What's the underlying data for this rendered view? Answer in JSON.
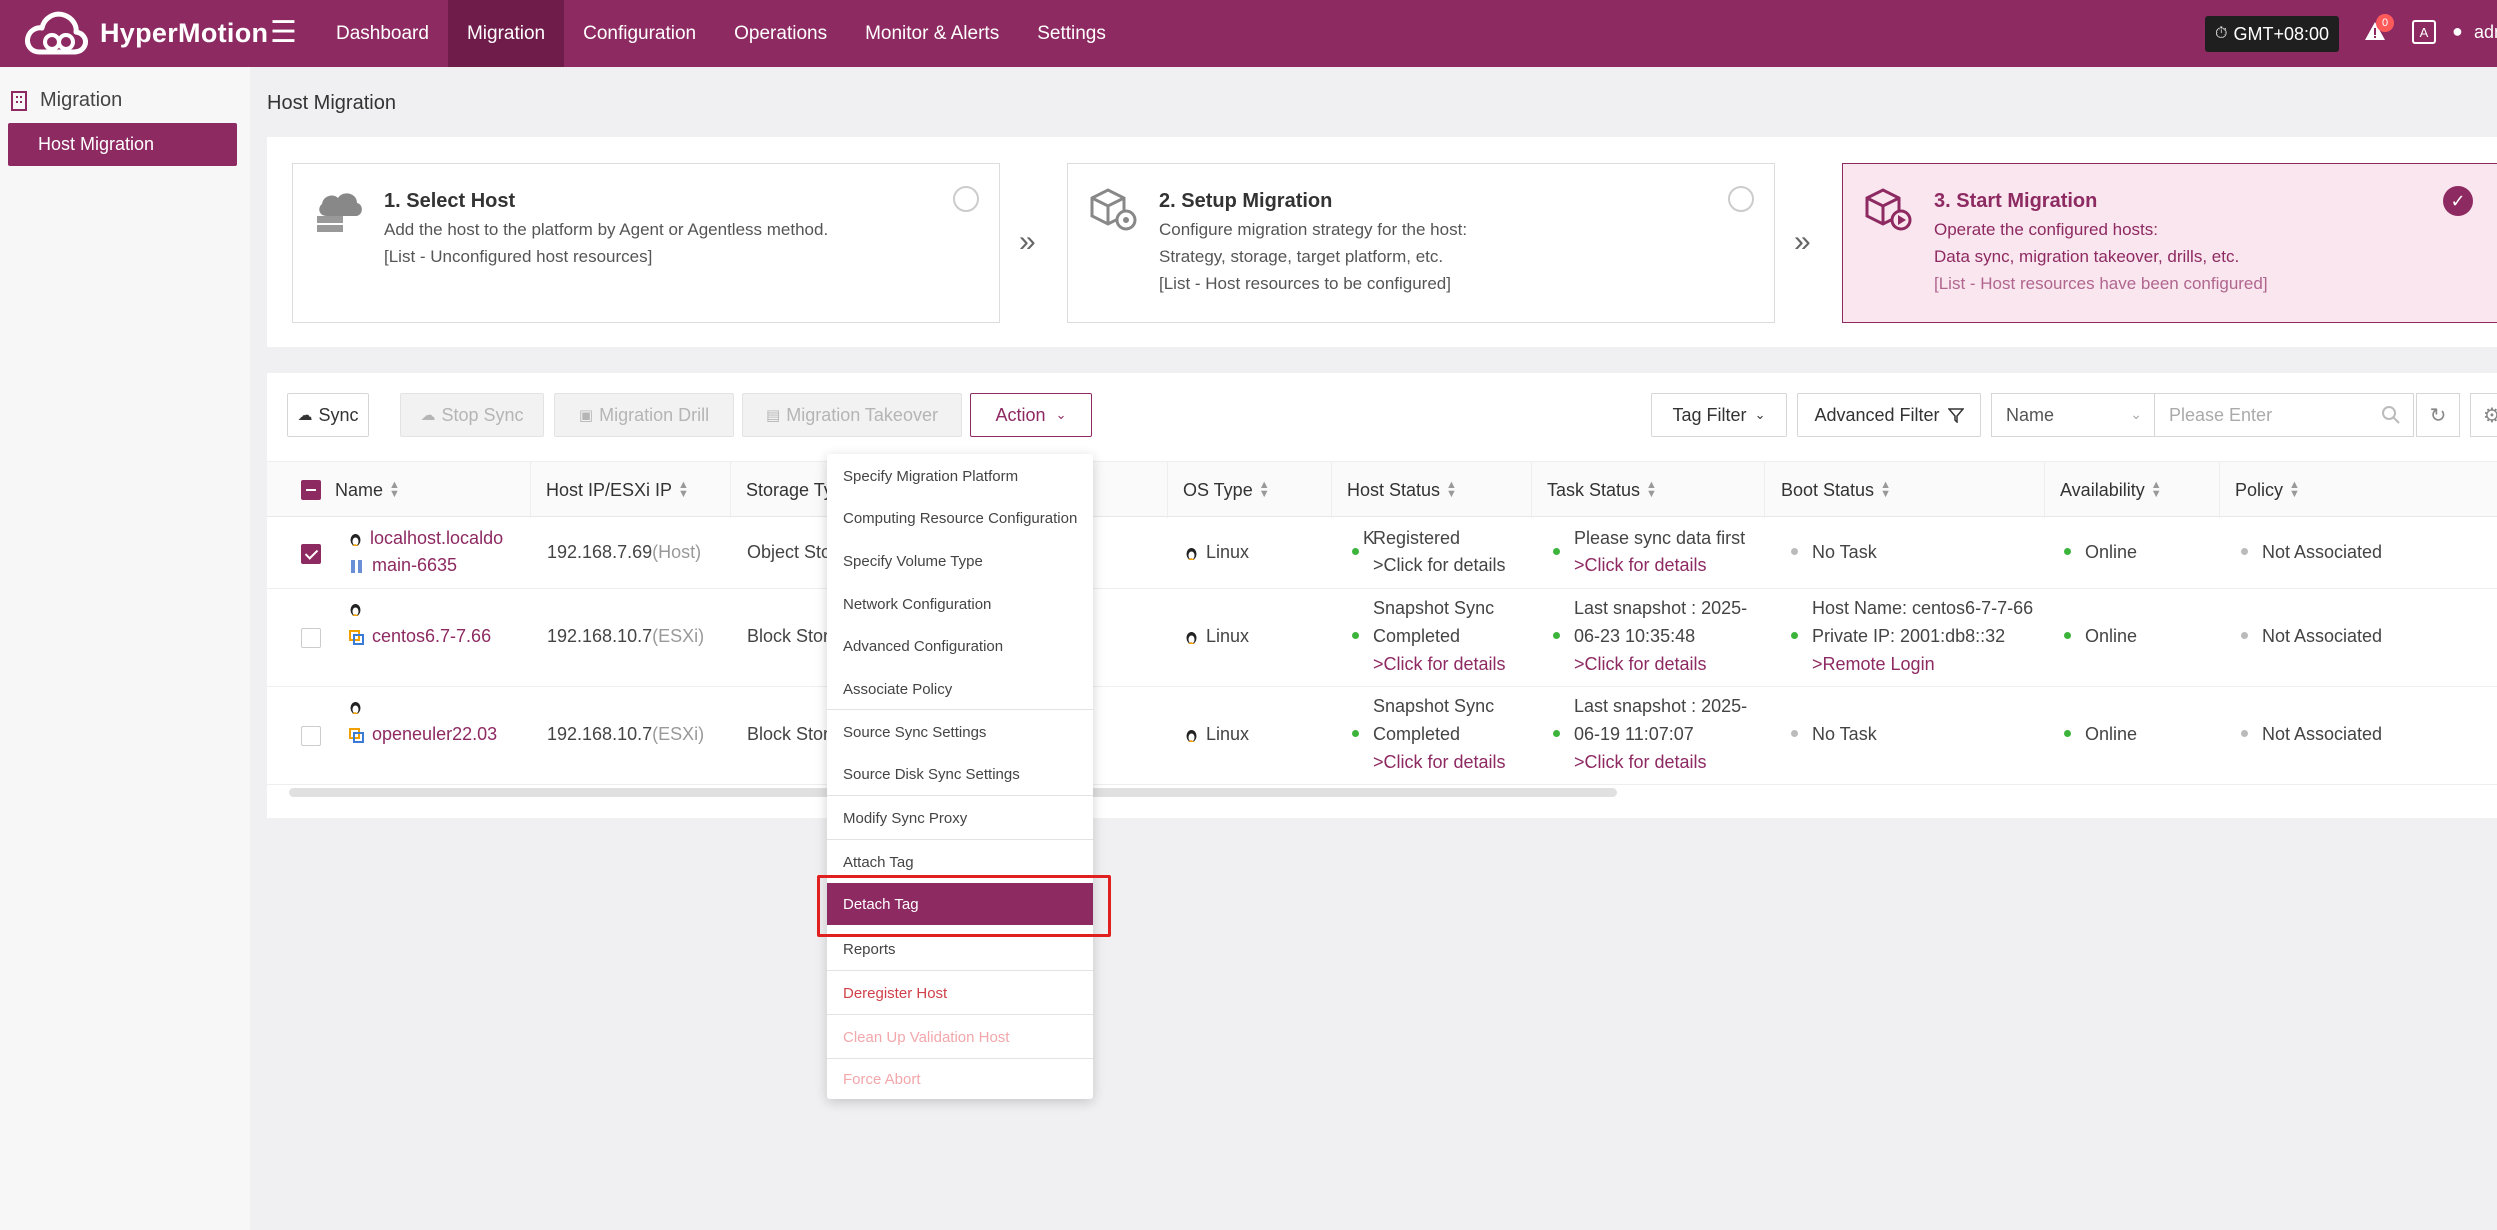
{
  "app": {
    "name": "HyperMotion"
  },
  "nav": {
    "items": [
      "Dashboard",
      "Migration",
      "Configuration",
      "Operations",
      "Monitor & Alerts",
      "Settings"
    ],
    "active": "Migration"
  },
  "header": {
    "timezone": "GMT+08:00",
    "alert_count": "0",
    "user": "adm"
  },
  "sidebar": {
    "group": "Migration",
    "items": [
      {
        "label": "Host Migration",
        "active": true
      }
    ]
  },
  "page": {
    "title": "Host Migration"
  },
  "steps": [
    {
      "title": "1. Select Host",
      "lines": [
        "Add the host to the platform by Agent or Agentless method.",
        "[List - Unconfigured host resources]"
      ],
      "state": "unselected"
    },
    {
      "title": "2. Setup Migration",
      "lines": [
        "Configure migration strategy for the host:",
        "Strategy, storage, target platform, etc.",
        "[List - Host resources to be configured]"
      ],
      "state": "unselected"
    },
    {
      "title": "3. Start Migration",
      "lines": [
        "Operate the configured hosts:",
        "Data sync, migration takeover, drills, etc.",
        "[List - Host resources have been configured]"
      ],
      "state": "active"
    }
  ],
  "toolbar": {
    "sync": "Sync",
    "stop_sync": "Stop Sync",
    "migration_drill": "Migration Drill",
    "migration_takeover": "Migration Takeover",
    "action": "Action",
    "tag_filter": "Tag Filter",
    "advanced_filter": "Advanced Filter",
    "search_field": "Name",
    "search_placeholder": "Please Enter"
  },
  "table": {
    "columns": [
      "Name",
      "Host IP/ESXi IP",
      "Storage Ty",
      "OS Type",
      "Host Status",
      "Task Status",
      "Boot Status",
      "Availability",
      "Policy"
    ],
    "rows": [
      {
        "checked": true,
        "name_lines": [
          "localhost.localdo",
          "main-6635"
        ],
        "ip": "192.168.7.69",
        "ip_type": "(Host)",
        "storage": "Object Sto",
        "storage_tail": "K",
        "os": "Linux",
        "host_status": [
          "Registered",
          ">Click for details"
        ],
        "task_status": [
          "Please sync data first",
          ">Click for details"
        ],
        "boot_status": [
          "No Task"
        ],
        "availability": "Online",
        "policy": "Not Associated"
      },
      {
        "checked": false,
        "name_lines": [
          "centos6.7-7.66"
        ],
        "ip": "192.168.10.7",
        "ip_type": "(ESXi)",
        "storage": "Block Stora",
        "os": "Linux",
        "host_status": [
          "Snapshot Sync",
          "Completed",
          ">Click for details"
        ],
        "task_status": [
          "Last snapshot : 2025-",
          "06-23 10:35:48",
          ">Click for details"
        ],
        "boot_status": [
          "Host Name: centos6-7-7-66",
          "Private IP: 2001:db8::32",
          ">Remote Login"
        ],
        "availability": "Online",
        "policy": "Not Associated"
      },
      {
        "checked": false,
        "name_lines": [
          "openeuler22.03"
        ],
        "ip": "192.168.10.7",
        "ip_type": "(ESXi)",
        "storage": "Block Stora",
        "os": "Linux",
        "host_status": [
          "Snapshot Sync",
          "Completed",
          ">Click for details"
        ],
        "task_status": [
          "Last snapshot : 2025-",
          "06-19 11:07:07",
          ">Click for details"
        ],
        "boot_status": [
          "No Task"
        ],
        "availability": "Online",
        "policy": "Not Associated"
      }
    ]
  },
  "action_menu": {
    "items": [
      {
        "label": "Specify Migration Platform",
        "state": "normal"
      },
      {
        "label": "Computing Resource Configuration",
        "state": "normal"
      },
      {
        "label": "Specify Volume Type",
        "state": "normal"
      },
      {
        "label": "Network Configuration",
        "state": "normal"
      },
      {
        "label": "Advanced Configuration",
        "state": "normal"
      },
      {
        "label": "Associate Policy",
        "state": "normal"
      },
      {
        "label": "Source Sync Settings",
        "state": "normal"
      },
      {
        "label": "Source Disk Sync Settings",
        "state": "normal"
      },
      {
        "label": "Modify Sync Proxy",
        "state": "normal"
      },
      {
        "label": "Attach Tag",
        "state": "normal"
      },
      {
        "label": "Detach Tag",
        "state": "highlighted"
      },
      {
        "label": "Reports",
        "state": "normal"
      },
      {
        "label": "Deregister Host",
        "state": "danger"
      },
      {
        "label": "Clean Up Validation Host",
        "state": "danger-disabled"
      },
      {
        "label": "Force Abort",
        "state": "danger-disabled"
      }
    ]
  },
  "colors": {
    "brand": "#8e2a62",
    "brand_dark": "#6f1c4b",
    "online": "#3cb43c",
    "highlight_box": "#e0201e"
  }
}
